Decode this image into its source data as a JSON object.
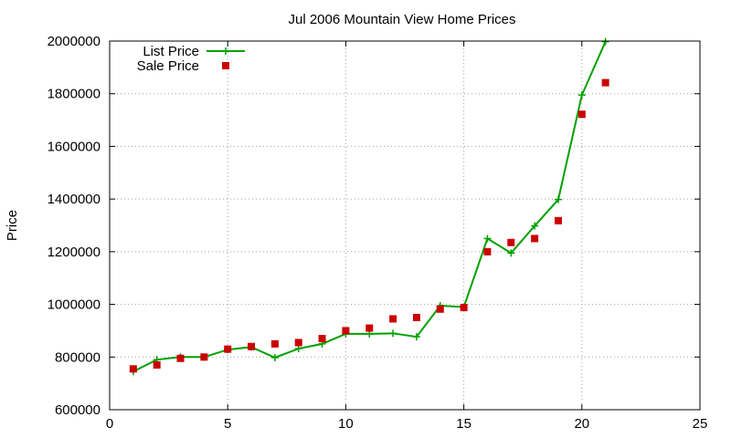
{
  "chart_data": {
    "type": "line",
    "title": "Jul 2006 Mountain View Home Prices",
    "xlabel": "",
    "ylabel": "Price",
    "xlim": [
      0,
      25
    ],
    "ylim": [
      600000,
      2000000
    ],
    "xticks": [
      0,
      5,
      10,
      15,
      20,
      25
    ],
    "yticks": [
      600000,
      800000,
      1000000,
      1200000,
      1400000,
      1600000,
      1800000,
      2000000
    ],
    "grid": true,
    "legend_position": "top-left",
    "series": [
      {
        "name": "List Price",
        "style": "lines+plus-markers",
        "color": "#00a000",
        "x": [
          1,
          2,
          3,
          4,
          5,
          6,
          7,
          8,
          9,
          10,
          11,
          12,
          13,
          14,
          15,
          16,
          17,
          18,
          19,
          20,
          21
        ],
        "y": [
          745000,
          790000,
          800000,
          800000,
          828000,
          838000,
          798000,
          832000,
          850000,
          888000,
          888000,
          890000,
          877000,
          995000,
          990000,
          1250000,
          1195000,
          1298000,
          1398000,
          1795000,
          1998000
        ]
      },
      {
        "name": "Sale Price",
        "style": "square-markers",
        "color": "#cc0000",
        "x": [
          1,
          2,
          3,
          4,
          5,
          6,
          7,
          8,
          9,
          10,
          11,
          12,
          13,
          14,
          15,
          16,
          17,
          18,
          19,
          20,
          21
        ],
        "y": [
          755000,
          770000,
          795000,
          800000,
          830000,
          840000,
          850000,
          855000,
          870000,
          900000,
          910000,
          945000,
          950000,
          982000,
          988000,
          1200000,
          1235000,
          1250000,
          1318000,
          1722000,
          1842000
        ]
      }
    ]
  }
}
